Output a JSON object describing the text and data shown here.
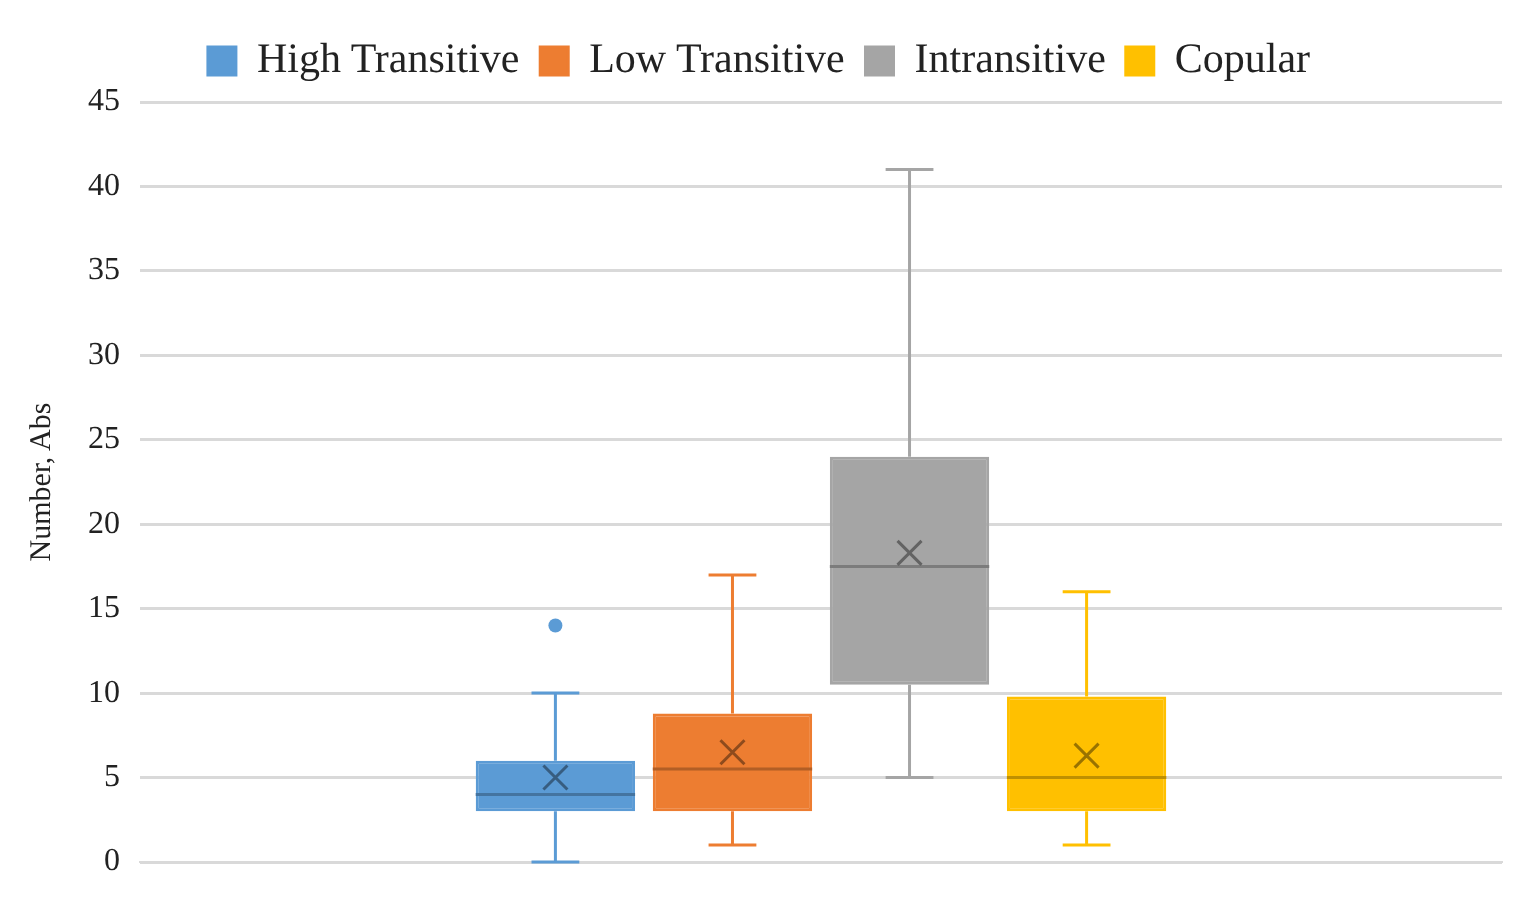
{
  "chart_data": {
    "type": "box",
    "ylabel": "Number, Abs",
    "categories": [
      null
    ],
    "series": [
      {
        "name": "High Transitive",
        "color": "#5b9bd5",
        "boxes": [
          {
            "low": 0,
            "q1": 3,
            "median": 4,
            "q3": 6,
            "high": 10,
            "mean": 5,
            "outliers": [
              14
            ]
          }
        ]
      },
      {
        "name": "Low Transitive",
        "color": "#ed7d31",
        "boxes": [
          {
            "low": 1,
            "q1": 3,
            "median": 5.5,
            "q3": 8.8,
            "high": 17,
            "mean": 6.5
          }
        ]
      },
      {
        "name": "Intransitive",
        "color": "#a5a5a5",
        "boxes": [
          {
            "low": 5,
            "q1": 10.5,
            "median": 17.5,
            "q3": 24,
            "high": 41,
            "mean": 18.3
          }
        ]
      },
      {
        "name": "Copular",
        "color": "#ffc000",
        "boxes": [
          {
            "low": 1,
            "q1": 3,
            "median": 5,
            "q3": 9.8,
            "high": 16,
            "mean": 6.3
          }
        ]
      }
    ],
    "ylim": [
      0,
      45
    ],
    "yticks": [
      0,
      5,
      10,
      15,
      20,
      25,
      30,
      35,
      40,
      45
    ],
    "grid": "y",
    "legend": "top"
  }
}
